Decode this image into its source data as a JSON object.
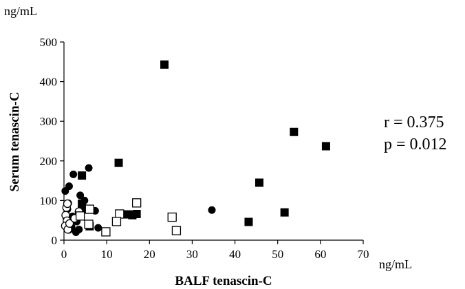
{
  "chart_data": {
    "type": "scatter",
    "title": "",
    "xlabel": "BALF tenascin-C",
    "ylabel": "Serum tenascin-C",
    "x_unit": "ng/mL",
    "y_unit": "ng/mL",
    "xlim": [
      0,
      70
    ],
    "ylim": [
      0,
      500
    ],
    "xticks": [
      0,
      10,
      20,
      30,
      40,
      50,
      60,
      70
    ],
    "yticks": [
      0,
      100,
      200,
      300,
      400,
      500
    ],
    "grid": false,
    "legend": "none",
    "annotations": [
      "r = 0.375",
      "p = 0.012"
    ],
    "series": [
      {
        "marker": "filled-square",
        "color": "#000000",
        "points": [
          [
            23.5,
            443
          ],
          [
            53.8,
            273
          ],
          [
            61.3,
            237
          ],
          [
            12.8,
            195
          ],
          [
            4.2,
            163
          ],
          [
            45.7,
            145
          ],
          [
            4.2,
            92
          ],
          [
            4.5,
            79
          ],
          [
            15.0,
            65
          ],
          [
            16.0,
            63
          ],
          [
            17.0,
            66
          ],
          [
            51.6,
            70
          ],
          [
            43.2,
            46
          ],
          [
            6.0,
            35
          ]
        ]
      },
      {
        "marker": "filled-circle",
        "color": "#000000",
        "points": [
          [
            0.3,
            124
          ],
          [
            1.2,
            136
          ],
          [
            2.2,
            166
          ],
          [
            5.8,
            182
          ],
          [
            3.8,
            113
          ],
          [
            1.0,
            93
          ],
          [
            4.8,
            100
          ],
          [
            0.5,
            58
          ],
          [
            3.0,
            47
          ],
          [
            1.8,
            33
          ],
          [
            2.8,
            20
          ],
          [
            3.5,
            27
          ],
          [
            1.2,
            26
          ],
          [
            7.3,
            74
          ],
          [
            34.6,
            76
          ],
          [
            8.0,
            31
          ],
          [
            0.8,
            78
          ],
          [
            2.0,
            60
          ]
        ]
      },
      {
        "marker": "open-circle",
        "color": "#000000",
        "points": [
          [
            0.6,
            82
          ],
          [
            0.8,
            92
          ],
          [
            0.4,
            63
          ],
          [
            0.7,
            49
          ],
          [
            0.3,
            36
          ],
          [
            0.9,
            27
          ],
          [
            1.3,
            42
          ],
          [
            2.5,
            55
          ],
          [
            3.5,
            72
          ]
        ]
      },
      {
        "marker": "open-square",
        "color": "#000000",
        "points": [
          [
            17.0,
            94
          ],
          [
            13.0,
            66
          ],
          [
            12.3,
            47
          ],
          [
            6.0,
            78
          ],
          [
            9.8,
            21
          ],
          [
            25.3,
            58
          ],
          [
            26.3,
            24
          ],
          [
            3.8,
            61
          ],
          [
            5.8,
            40
          ]
        ]
      }
    ]
  }
}
